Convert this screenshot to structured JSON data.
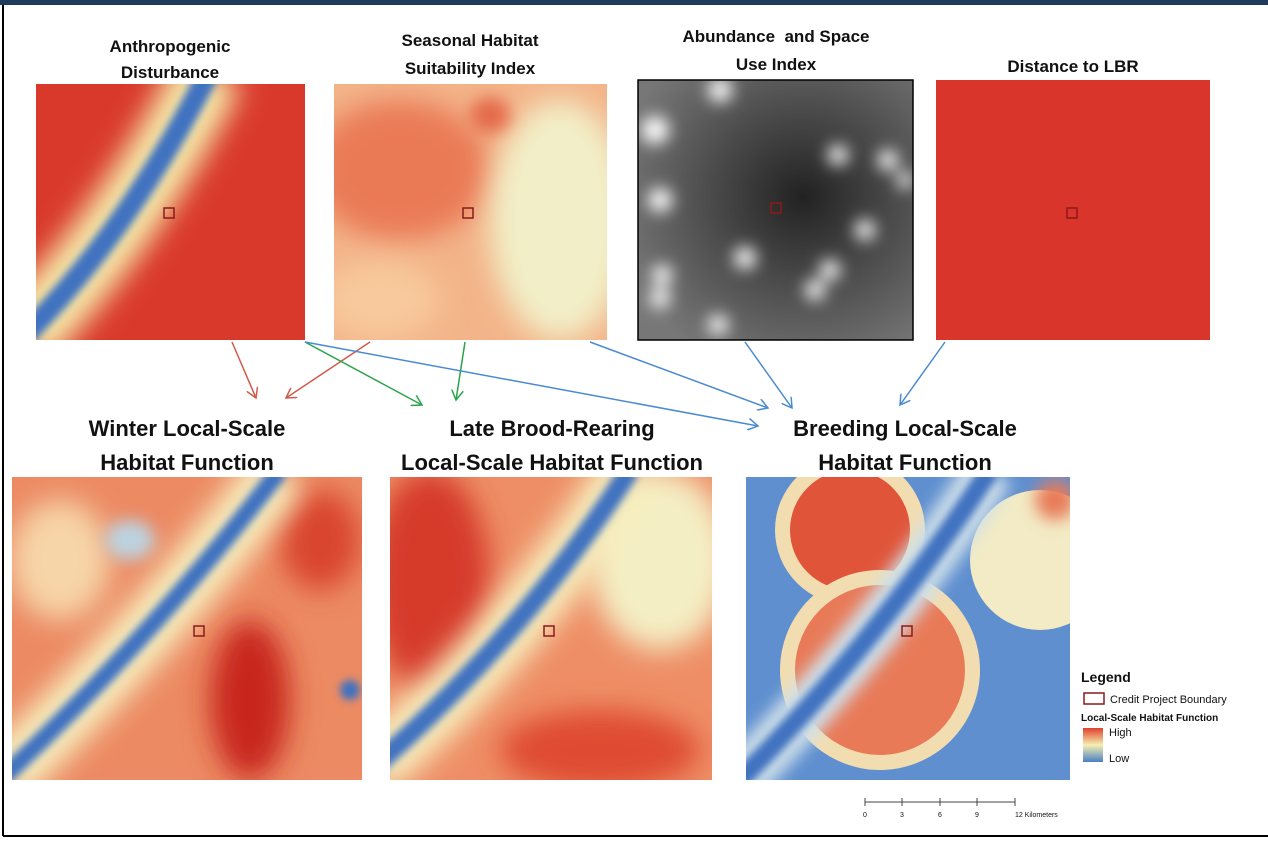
{
  "maps": [
    {
      "title_lines": [
        "Anthropogenic",
        "Disturbance"
      ]
    },
    {
      "title_lines": [
        "Seasonal Habitat",
        "Suitability Index"
      ]
    },
    {
      "title_lines": [
        "Abundance  and Space",
        "Use Index"
      ]
    },
    {
      "title_lines": [
        "Distance to LBR"
      ]
    }
  ],
  "outputs": [
    {
      "title_lines": [
        "Winter Local-Scale",
        "Habitat Function"
      ]
    },
    {
      "title_lines": [
        "Late Brood-Rearing",
        "Local-Scale Habitat Function"
      ]
    },
    {
      "title_lines": [
        "Breeding Local-Scale",
        "Habitat Function"
      ]
    }
  ],
  "legend": {
    "title": "Legend",
    "boundary": "Credit Project Boundary",
    "scale_title": "Local-Scale Habitat Function",
    "high": "High",
    "low": "Low"
  },
  "scale_bar": {
    "labels": [
      "0",
      "3",
      "6",
      "9",
      "12 Kilometers"
    ]
  }
}
